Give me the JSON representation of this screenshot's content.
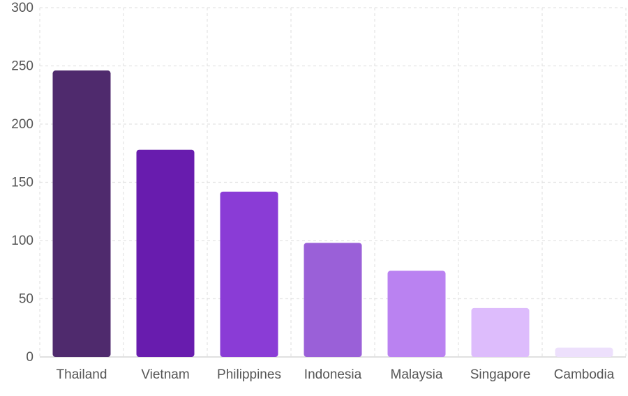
{
  "chart_data": {
    "type": "bar",
    "categories": [
      "Thailand",
      "Vietnam",
      "Philippines",
      "Indonesia",
      "Malaysia",
      "Singapore",
      "Cambodia"
    ],
    "values": [
      246,
      178,
      142,
      98,
      74,
      42,
      8
    ],
    "colors": [
      "#4f2a6d",
      "#681cae",
      "#8a3cd6",
      "#9a60d8",
      "#ba82f1",
      "#ddbcfc",
      "#ede0fc"
    ],
    "title": "",
    "xlabel": "",
    "ylabel": "",
    "ylim": [
      0,
      300
    ],
    "yticks": [
      "0",
      "50",
      "100",
      "150",
      "200",
      "250",
      "300"
    ],
    "grid": true,
    "legend": false
  }
}
